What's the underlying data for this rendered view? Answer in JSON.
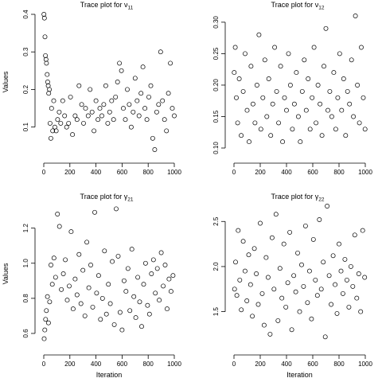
{
  "chart_data": [
    {
      "type": "scatter",
      "title": "Trace plot for ν",
      "title_subscript": "11",
      "xlabel": "",
      "ylabel": "Values",
      "xlim": [
        0,
        1000
      ],
      "ylim": [
        0.04,
        0.4
      ],
      "x_ticks": [
        "0",
        "200",
        "400",
        "600",
        "800",
        "1000"
      ],
      "y_ticks": [
        "0.1",
        "0.2",
        "0.3",
        "0.4"
      ],
      "series": [
        {
          "x": [
            1,
            5,
            9,
            13,
            17,
            21,
            26,
            30,
            34,
            38,
            43,
            48,
            54,
            60,
            68,
            76,
            85,
            95,
            106,
            118,
            130,
            145,
            160,
            175,
            190,
            205,
            220,
            240,
            255,
            270,
            290,
            305,
            320,
            340,
            355,
            370,
            385,
            400,
            415,
            430,
            445,
            460,
            475,
            490,
            505,
            520,
            535,
            550,
            565,
            580,
            595,
            610,
            625,
            640,
            655,
            670,
            685,
            700,
            715,
            730,
            745,
            760,
            775,
            790,
            805,
            820,
            835,
            850,
            865,
            880,
            895,
            910,
            925,
            940,
            955,
            970,
            985,
            1000
          ],
          "y": [
            0.4,
            0.39,
            0.34,
            0.29,
            0.28,
            0.27,
            0.24,
            0.22,
            0.21,
            0.19,
            0.2,
            0.11,
            0.07,
            0.15,
            0.09,
            0.17,
            0.1,
            0.09,
            0.12,
            0.14,
            0.11,
            0.17,
            0.13,
            0.1,
            0.11,
            0.18,
            0.08,
            0.13,
            0.12,
            0.21,
            0.16,
            0.11,
            0.15,
            0.13,
            0.2,
            0.14,
            0.09,
            0.17,
            0.12,
            0.15,
            0.13,
            0.16,
            0.21,
            0.11,
            0.14,
            0.17,
            0.12,
            0.18,
            0.22,
            0.27,
            0.25,
            0.15,
            0.12,
            0.2,
            0.16,
            0.1,
            0.14,
            0.23,
            0.17,
            0.13,
            0.19,
            0.26,
            0.15,
            0.12,
            0.18,
            0.21,
            0.07,
            0.04,
            0.14,
            0.16,
            0.3,
            0.17,
            0.12,
            0.09,
            0.19,
            0.27,
            0.15,
            0.13
          ]
        }
      ]
    },
    {
      "type": "scatter",
      "title": "Trace plot for ν",
      "title_subscript": "12",
      "xlabel": "",
      "ylabel": "",
      "xlim": [
        0,
        1000
      ],
      "ylim": [
        0.1,
        0.31
      ],
      "x_ticks": [
        "0",
        "200",
        "400",
        "600",
        "800",
        "1000"
      ],
      "y_ticks": [
        "0.10",
        "0.15",
        "0.20",
        "0.25",
        "0.30"
      ],
      "series": [
        {
          "x": [
            2,
            10,
            18,
            28,
            40,
            55,
            70,
            85,
            100,
            115,
            130,
            145,
            160,
            175,
            190,
            205,
            220,
            235,
            250,
            265,
            280,
            295,
            310,
            325,
            340,
            355,
            370,
            385,
            400,
            415,
            430,
            445,
            460,
            475,
            490,
            505,
            520,
            535,
            550,
            565,
            580,
            595,
            610,
            625,
            640,
            655,
            670,
            685,
            700,
            715,
            730,
            745,
            760,
            775,
            790,
            805,
            820,
            835,
            850,
            865,
            880,
            895,
            910,
            925,
            940,
            955,
            970,
            985,
            998
          ],
          "y": [
            0.22,
            0.26,
            0.18,
            0.14,
            0.21,
            0.12,
            0.19,
            0.25,
            0.16,
            0.11,
            0.23,
            0.17,
            0.14,
            0.2,
            0.28,
            0.13,
            0.18,
            0.24,
            0.15,
            0.21,
            0.12,
            0.17,
            0.26,
            0.19,
            0.14,
            0.23,
            0.11,
            0.18,
            0.16,
            0.25,
            0.2,
            0.13,
            0.17,
            0.22,
            0.15,
            0.11,
            0.19,
            0.24,
            0.16,
            0.21,
            0.13,
            0.18,
            0.26,
            0.14,
            0.2,
            0.17,
            0.12,
            0.23,
            0.29,
            0.16,
            0.19,
            0.15,
            0.22,
            0.13,
            0.18,
            0.25,
            0.16,
            0.21,
            0.12,
            0.19,
            0.17,
            0.24,
            0.15,
            0.31,
            0.2,
            0.14,
            0.26,
            0.18,
            0.13
          ]
        }
      ]
    },
    {
      "type": "scatter",
      "title": "Trace plot for γ",
      "title_subscript": "21",
      "xlabel": "Iteration",
      "ylabel": "Values",
      "xlim": [
        0,
        1000
      ],
      "ylim": [
        0.55,
        1.33
      ],
      "x_ticks": [
        "0",
        "200",
        "400",
        "600",
        "800",
        "1000"
      ],
      "y_ticks": [
        "0.6",
        "0.8",
        "1.0",
        "1.2"
      ],
      "series": [
        {
          "x": [
            3,
            8,
            14,
            20,
            28,
            36,
            45,
            55,
            65,
            78,
            90,
            105,
            120,
            135,
            150,
            165,
            180,
            195,
            210,
            225,
            240,
            255,
            270,
            285,
            300,
            315,
            330,
            345,
            360,
            375,
            390,
            405,
            420,
            435,
            450,
            465,
            480,
            495,
            510,
            525,
            540,
            555,
            570,
            585,
            600,
            615,
            630,
            645,
            660,
            675,
            690,
            705,
            720,
            735,
            750,
            765,
            780,
            795,
            810,
            825,
            840,
            855,
            870,
            885,
            900,
            915,
            930,
            945,
            960,
            975,
            990
          ],
          "y": [
            0.57,
            0.62,
            0.68,
            0.73,
            0.81,
            0.66,
            0.78,
            0.99,
            0.88,
            1.03,
            0.92,
            1.28,
            1.21,
            0.85,
            0.94,
            1.02,
            0.79,
            0.87,
            1.18,
            0.74,
            0.91,
            0.82,
            1.05,
            0.77,
            0.96,
            0.7,
            1.12,
            0.86,
            0.99,
            0.75,
            1.29,
            0.83,
            0.93,
            0.68,
            0.8,
            1.07,
            0.71,
            0.88,
            0.77,
            1.01,
            0.65,
            1.31,
            1.04,
            0.72,
            0.62,
            0.9,
            0.84,
            0.97,
            0.73,
            1.08,
            0.81,
            0.69,
            0.92,
            0.78,
            0.64,
            0.88,
            1.0,
            0.76,
            0.71,
            0.94,
            1.02,
            0.83,
            0.97,
            0.79,
            1.06,
            0.87,
            0.99,
            0.74,
            0.91,
            0.84,
            0.93
          ]
        }
      ]
    },
    {
      "type": "scatter",
      "title": "Trace plot for γ",
      "title_subscript": "22",
      "xlabel": "Iteration",
      "ylabel": "",
      "xlim": [
        0,
        1000
      ],
      "ylim": [
        1.17,
        2.67
      ],
      "x_ticks": [
        "0",
        "200",
        "400",
        "600",
        "800",
        "1000"
      ],
      "y_ticks": [
        "1.5",
        "2.0",
        "2.5"
      ],
      "series": [
        {
          "x": [
            4,
            12,
            22,
            32,
            44,
            56,
            70,
            84,
            98,
            112,
            126,
            140,
            155,
            170,
            185,
            200,
            215,
            230,
            245,
            260,
            275,
            290,
            305,
            320,
            335,
            350,
            365,
            380,
            395,
            410,
            425,
            440,
            455,
            470,
            485,
            500,
            515,
            530,
            545,
            560,
            575,
            590,
            605,
            620,
            635,
            650,
            665,
            680,
            695,
            710,
            725,
            740,
            755,
            770,
            785,
            800,
            815,
            830,
            845,
            860,
            875,
            890,
            905,
            920,
            935,
            950,
            965,
            980,
            995
          ],
          "y": [
            1.75,
            2.05,
            1.68,
            2.4,
            1.85,
            1.52,
            2.28,
            1.95,
            1.62,
            2.13,
            1.8,
            1.45,
            2.2,
            1.92,
            1.58,
            2.48,
            1.7,
            1.35,
            2.1,
            1.88,
            1.25,
            2.32,
            1.75,
            2.58,
            1.4,
            1.98,
            1.65,
            2.25,
            1.55,
            1.82,
            2.38,
            1.3,
            1.9,
            1.72,
            2.15,
            1.5,
            2.02,
            1.78,
            2.45,
            1.6,
            1.95,
            1.42,
            2.3,
            1.85,
            1.68,
            2.52,
            1.75,
            2.05,
            1.22,
            2.67,
            1.9,
            1.58,
            2.12,
            1.8,
            1.48,
            2.25,
            1.95,
            1.7,
            2.08,
            1.85,
            1.55,
            2.0,
            1.78,
            2.35,
            1.65,
            1.92,
            1.5,
            2.4,
            1.88
          ]
        }
      ]
    }
  ]
}
